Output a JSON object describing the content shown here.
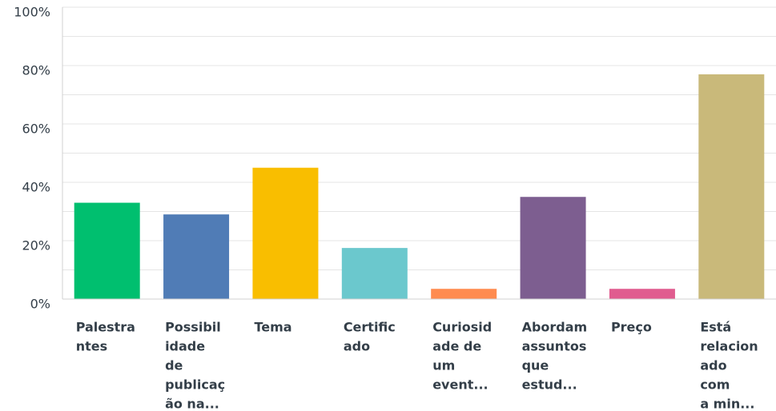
{
  "chart_data": {
    "type": "bar",
    "categories": [
      [
        "Palestra",
        "ntes"
      ],
      [
        "Possibil",
        "idade",
        "de",
        "publicaç",
        "ão na..."
      ],
      [
        "Tema"
      ],
      [
        "Certific",
        "ado"
      ],
      [
        "Curiosid",
        "ade de",
        "um",
        "event..."
      ],
      [
        "Abordam",
        "assuntos",
        "que",
        "estud..."
      ],
      [
        "Preço"
      ],
      [
        "Está",
        "relacion",
        "ado",
        "com",
        "a min..."
      ]
    ],
    "values": [
      33,
      29,
      45,
      17.5,
      3.5,
      35,
      3.5,
      77
    ],
    "colors": [
      "#00bf6f",
      "#507cb6",
      "#f9be00",
      "#6bc8cd",
      "#ff8b4f",
      "#7d5e90",
      "#e05c8f",
      "#c9b97a"
    ],
    "ylim": [
      0,
      100
    ],
    "yticks": [
      {
        "value": 0,
        "label": "0%"
      },
      {
        "value": 20,
        "label": "20%"
      },
      {
        "value": 40,
        "label": "40%"
      },
      {
        "value": 60,
        "label": "60%"
      },
      {
        "value": 80,
        "label": "80%"
      },
      {
        "value": 100,
        "label": "100%"
      }
    ],
    "minor_yticks": [
      10,
      30,
      50,
      70,
      90
    ],
    "grid": true
  }
}
